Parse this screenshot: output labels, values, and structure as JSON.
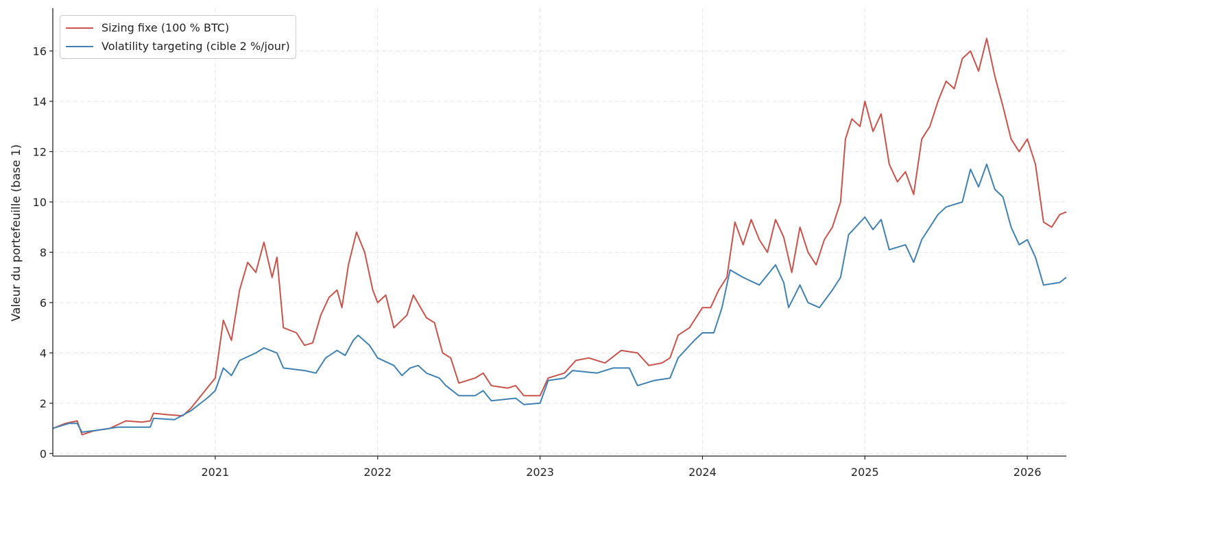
{
  "chart_data": {
    "type": "line",
    "title": "",
    "xlabel": "",
    "ylabel": "Valeur du portefeuille (base 1)",
    "xlim": [
      2020.0,
      2026.24
    ],
    "ylim": [
      -0.1,
      17.7
    ],
    "x_ticks": [
      "2021",
      "2022",
      "2023",
      "2024",
      "2025",
      "2026"
    ],
    "y_ticks": [
      "0",
      "2",
      "4",
      "6",
      "8",
      "10",
      "12",
      "14",
      "16"
    ],
    "grid": true,
    "legend_position": "top-left",
    "series": [
      {
        "name": "Sizing fixe (100 % BTC)",
        "color": "#c8524a",
        "x": [
          2020.0,
          2020.08,
          2020.15,
          2020.18,
          2020.25,
          2020.35,
          2020.45,
          2020.55,
          2020.6,
          2020.62,
          2020.7,
          2020.8,
          2020.85,
          2020.9,
          2020.95,
          2021.0,
          2021.05,
          2021.1,
          2021.15,
          2021.2,
          2021.25,
          2021.3,
          2021.35,
          2021.38,
          2021.42,
          2021.5,
          2021.55,
          2021.6,
          2021.65,
          2021.7,
          2021.75,
          2021.78,
          2021.82,
          2021.87,
          2021.92,
          2021.97,
          2022.0,
          2022.05,
          2022.1,
          2022.18,
          2022.22,
          2022.3,
          2022.35,
          2022.4,
          2022.45,
          2022.5,
          2022.6,
          2022.65,
          2022.7,
          2022.8,
          2022.85,
          2022.9,
          2023.0,
          2023.05,
          2023.15,
          2023.22,
          2023.3,
          2023.4,
          2023.5,
          2023.6,
          2023.67,
          2023.75,
          2023.8,
          2023.85,
          2023.92,
          2024.0,
          2024.05,
          2024.1,
          2024.15,
          2024.2,
          2024.25,
          2024.3,
          2024.35,
          2024.4,
          2024.45,
          2024.5,
          2024.55,
          2024.6,
          2024.65,
          2024.7,
          2024.75,
          2024.8,
          2024.85,
          2024.88,
          2024.92,
          2024.97,
          2025.0,
          2025.05,
          2025.1,
          2025.15,
          2025.2,
          2025.25,
          2025.3,
          2025.35,
          2025.4,
          2025.45,
          2025.5,
          2025.55,
          2025.6,
          2025.65,
          2025.7,
          2025.75,
          2025.8,
          2025.85,
          2025.9,
          2025.95,
          2026.0,
          2026.05,
          2026.1,
          2026.15,
          2026.2,
          2026.24
        ],
        "values": [
          1.0,
          1.2,
          1.3,
          0.75,
          0.9,
          1.0,
          1.3,
          1.25,
          1.3,
          1.6,
          1.55,
          1.5,
          1.8,
          2.2,
          2.6,
          3.0,
          5.3,
          4.5,
          6.5,
          7.6,
          7.2,
          8.4,
          7.0,
          7.8,
          5.0,
          4.8,
          4.3,
          4.4,
          5.5,
          6.2,
          6.5,
          5.8,
          7.5,
          8.8,
          8.0,
          6.5,
          6.0,
          6.3,
          5.0,
          5.5,
          6.3,
          5.4,
          5.2,
          4.0,
          3.8,
          2.8,
          3.0,
          3.2,
          2.7,
          2.6,
          2.7,
          2.3,
          2.3,
          3.0,
          3.2,
          3.7,
          3.8,
          3.6,
          4.1,
          4.0,
          3.5,
          3.6,
          3.8,
          4.7,
          5.0,
          5.8,
          5.8,
          6.5,
          7.0,
          9.2,
          8.3,
          9.3,
          8.5,
          8.0,
          9.3,
          8.6,
          7.2,
          9.0,
          8.0,
          7.5,
          8.5,
          9.0,
          10.0,
          12.5,
          13.3,
          13.0,
          14.0,
          12.8,
          13.5,
          11.5,
          10.8,
          11.2,
          10.3,
          12.5,
          13.0,
          14.0,
          14.8,
          14.5,
          15.7,
          16.0,
          15.2,
          16.5,
          15.0,
          13.8,
          12.5,
          12.0,
          12.5,
          11.5,
          9.2,
          9.0,
          9.5,
          9.6
        ]
      },
      {
        "name": "Volatility targeting (cible 2 %/jour)",
        "color": "#3f80b2",
        "x": [
          2020.0,
          2020.1,
          2020.15,
          2020.18,
          2020.3,
          2020.4,
          2020.6,
          2020.62,
          2020.75,
          2020.85,
          2020.95,
          2021.0,
          2021.05,
          2021.1,
          2021.15,
          2021.25,
          2021.3,
          2021.38,
          2021.42,
          2021.55,
          2021.62,
          2021.68,
          2021.75,
          2021.8,
          2021.85,
          2021.88,
          2021.95,
          2022.0,
          2022.1,
          2022.15,
          2022.2,
          2022.25,
          2022.3,
          2022.38,
          2022.42,
          2022.5,
          2022.6,
          2022.65,
          2022.7,
          2022.85,
          2022.9,
          2023.0,
          2023.05,
          2023.15,
          2023.2,
          2023.35,
          2023.45,
          2023.55,
          2023.6,
          2023.7,
          2023.8,
          2023.85,
          2023.95,
          2024.0,
          2024.07,
          2024.12,
          2024.17,
          2024.25,
          2024.35,
          2024.45,
          2024.5,
          2024.53,
          2024.6,
          2024.65,
          2024.72,
          2024.8,
          2024.85,
          2024.9,
          2025.0,
          2025.05,
          2025.1,
          2025.15,
          2025.25,
          2025.3,
          2025.35,
          2025.45,
          2025.5,
          2025.6,
          2025.65,
          2025.7,
          2025.75,
          2025.8,
          2025.85,
          2025.9,
          2025.95,
          2026.0,
          2026.05,
          2026.1,
          2026.2,
          2026.24
        ],
        "values": [
          1.0,
          1.2,
          1.2,
          0.85,
          0.95,
          1.05,
          1.05,
          1.4,
          1.35,
          1.7,
          2.2,
          2.5,
          3.4,
          3.1,
          3.7,
          4.0,
          4.2,
          4.0,
          3.4,
          3.3,
          3.2,
          3.8,
          4.1,
          3.9,
          4.5,
          4.7,
          4.3,
          3.8,
          3.5,
          3.1,
          3.4,
          3.5,
          3.2,
          3.0,
          2.7,
          2.3,
          2.3,
          2.5,
          2.1,
          2.2,
          1.95,
          2.0,
          2.9,
          3.0,
          3.3,
          3.2,
          3.4,
          3.4,
          2.7,
          2.9,
          3.0,
          3.8,
          4.5,
          4.8,
          4.8,
          5.8,
          7.3,
          7.0,
          6.7,
          7.5,
          6.8,
          5.8,
          6.7,
          6.0,
          5.8,
          6.5,
          7.0,
          8.7,
          9.4,
          8.9,
          9.3,
          8.1,
          8.3,
          7.6,
          8.5,
          9.5,
          9.8,
          10.0,
          11.3,
          10.6,
          11.5,
          10.5,
          10.2,
          9.0,
          8.3,
          8.5,
          7.8,
          6.7,
          6.8,
          7.0
        ]
      }
    ]
  }
}
